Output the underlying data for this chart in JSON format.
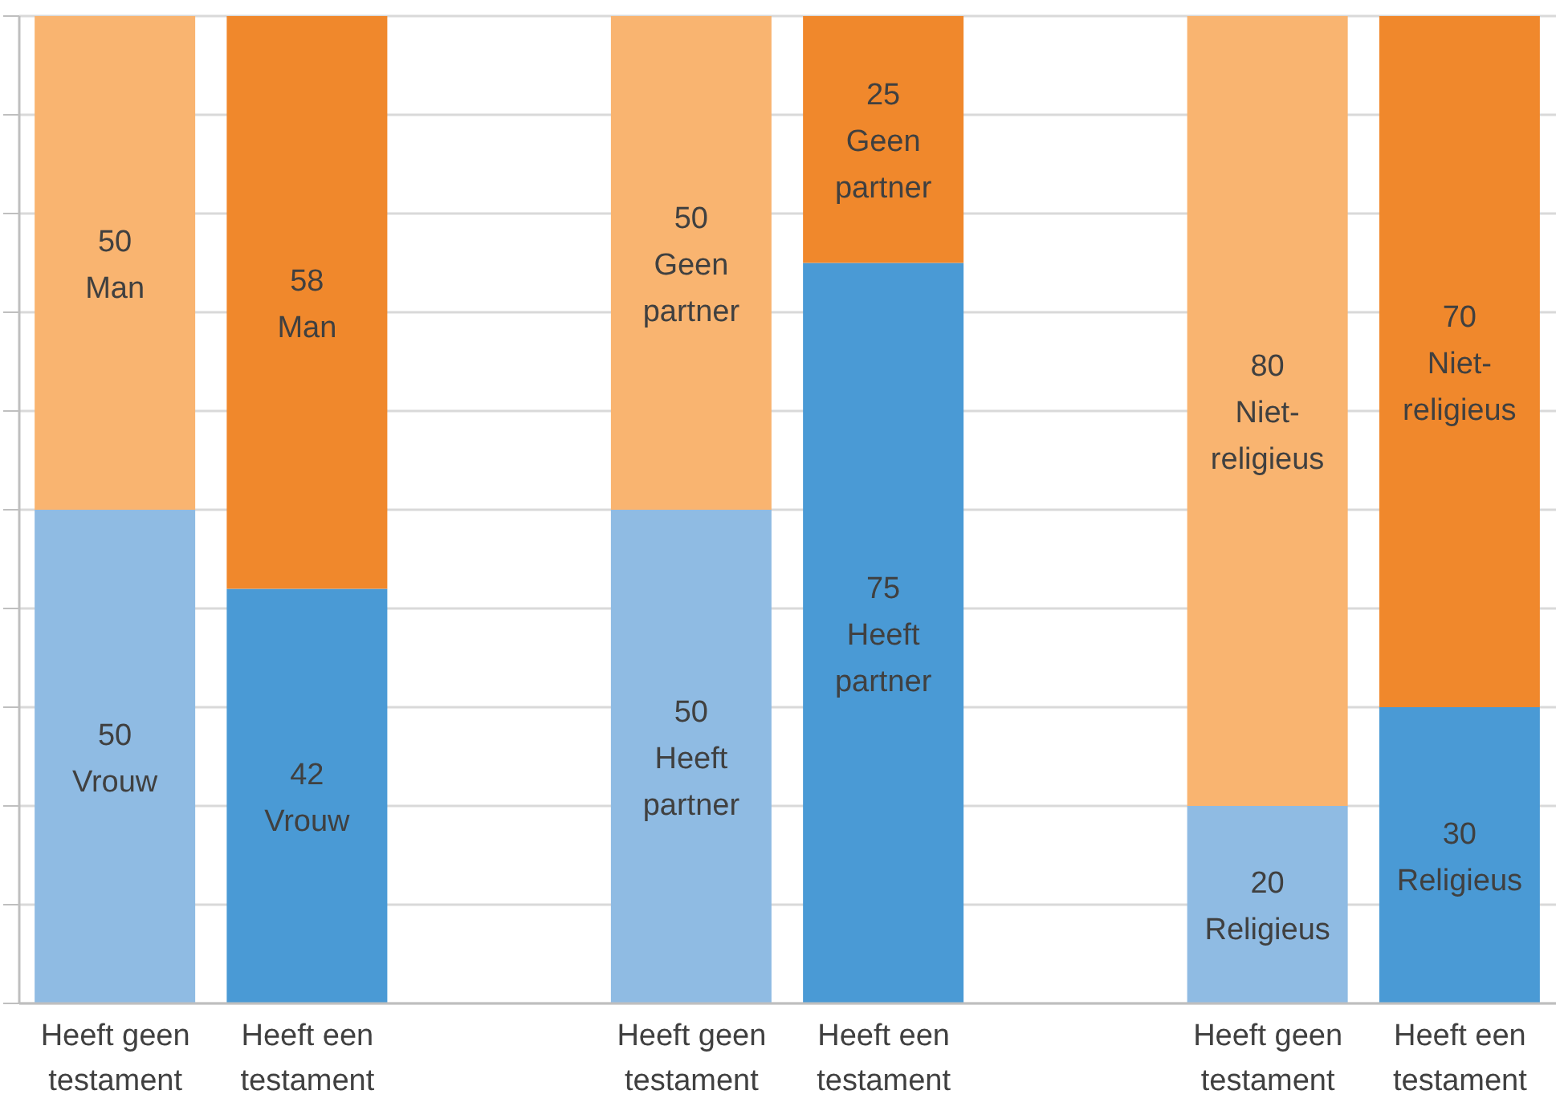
{
  "chart_data": {
    "type": "bar",
    "stacked": true,
    "categories": [
      "Heeft geen testament",
      "Heeft een testament",
      null,
      "Heeft geen testament",
      "Heeft een testament",
      null,
      "Heeft geen testament",
      "Heeft een testament"
    ],
    "series": [
      {
        "values": [
          50,
          42,
          null,
          50,
          75,
          null,
          20,
          30
        ],
        "colors": [
          "#8fbbe3",
          "#4a9ad5",
          null,
          "#8fbbe3",
          "#4a9ad5",
          null,
          "#8fbbe3",
          "#4a9ad5"
        ],
        "value_labels": [
          "50\nVrouw",
          "42\nVrouw",
          null,
          "50\nHeeft\npartner",
          "75\nHeeft\npartner",
          null,
          "20\nReligieus",
          "30\nReligieus"
        ]
      },
      {
        "values": [
          50,
          58,
          null,
          50,
          25,
          null,
          80,
          70
        ],
        "colors": [
          "#f9b470",
          "#f0882c",
          null,
          "#f9b470",
          "#f0882c",
          null,
          "#f9b470",
          "#f0882c"
        ],
        "value_labels": [
          "50\nMan",
          "58\nMan",
          null,
          "50\nGeen\npartner",
          "25\nGeen\npartner",
          null,
          "80\nNiet-\nreligieus",
          "70\nNiet-\nreligieus"
        ]
      }
    ],
    "ylim": [
      0,
      100
    ],
    "yticks": [
      {
        "value": 0,
        "label": null
      },
      {
        "value": 10,
        "label": null
      },
      {
        "value": 20,
        "label": null
      },
      {
        "value": 30,
        "label": null
      },
      {
        "value": 40,
        "label": null
      },
      {
        "value": 50,
        "label": null
      },
      {
        "value": 60,
        "label": null
      },
      {
        "value": 70,
        "label": null
      },
      {
        "value": 80,
        "label": null
      },
      {
        "value": 90,
        "label": null
      },
      {
        "value": 100,
        "label": null
      }
    ],
    "tick_labels": "x",
    "grid": "y",
    "legend": false
  }
}
